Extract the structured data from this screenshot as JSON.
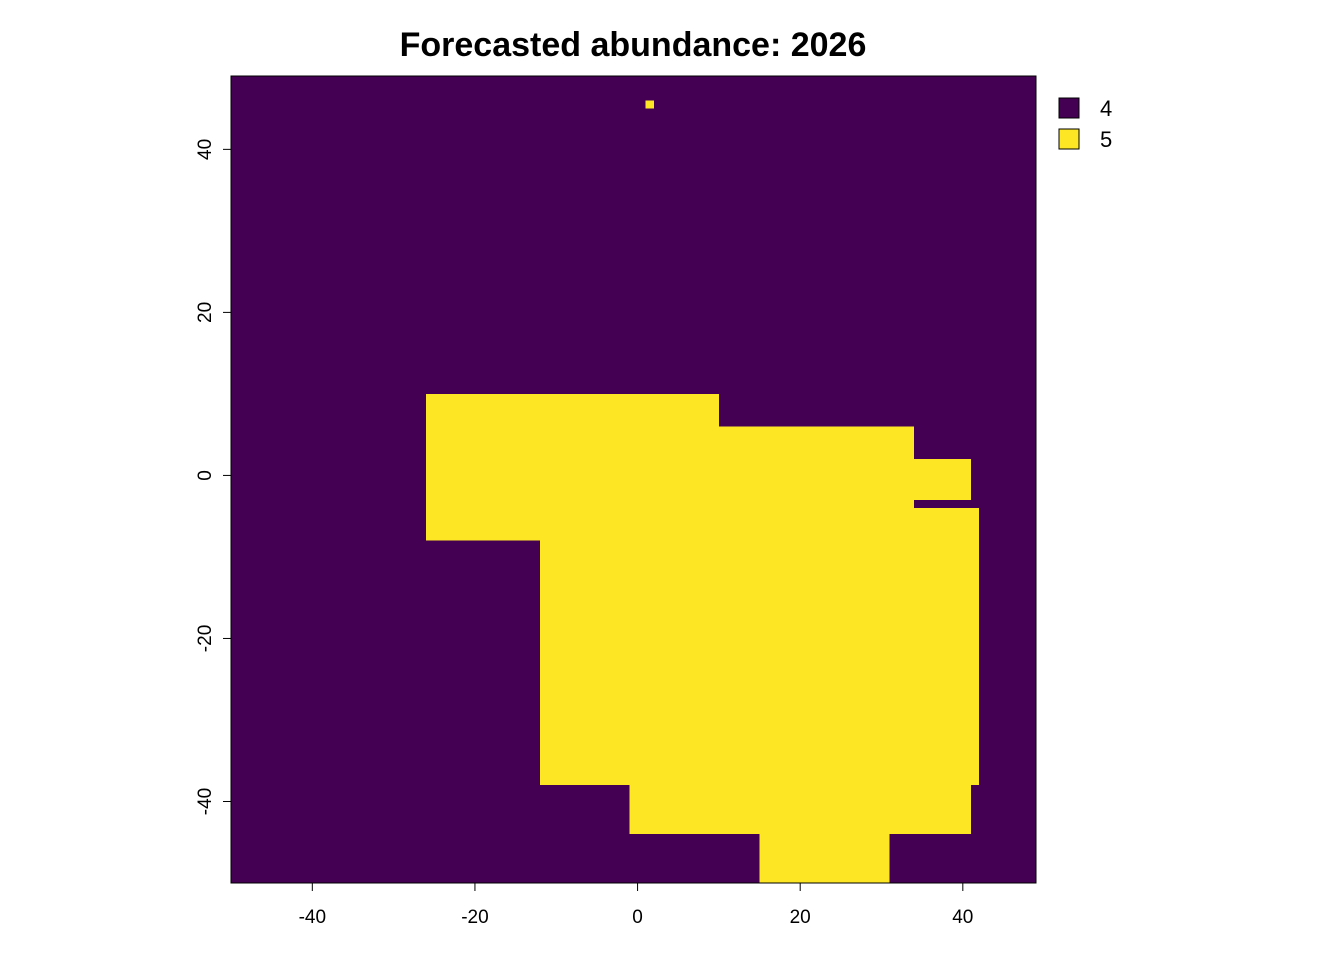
{
  "chart_data": {
    "type": "heatmap",
    "title": "Forecasted abundance: 2026",
    "xlabel": "",
    "ylabel": "",
    "xlim": [
      -50,
      49
    ],
    "ylim": [
      -50,
      49
    ],
    "x_ticks": [
      "-40",
      "-20",
      "0",
      "20",
      "40"
    ],
    "y_ticks": [
      "-40",
      "-20",
      "0",
      "20",
      "40"
    ],
    "grid": false,
    "legend_position": "top-right",
    "classes": [
      {
        "label": "4",
        "color": "#440154"
      },
      {
        "label": "5",
        "color": "#FDE725"
      }
    ],
    "background_class": "4",
    "value_5_regions": [
      {
        "x": [
          -26,
          10
        ],
        "y": [
          -8,
          10
        ]
      },
      {
        "x": [
          -12,
          42
        ],
        "y": [
          -38,
          -4
        ]
      },
      {
        "x": [
          -1,
          41
        ],
        "y": [
          -44,
          -30
        ]
      },
      {
        "x": [
          15,
          31
        ],
        "y": [
          -50,
          -44
        ]
      },
      {
        "x": [
          10,
          34
        ],
        "y": [
          -4,
          6
        ]
      },
      {
        "x": [
          33,
          41
        ],
        "y": [
          -3,
          2
        ]
      },
      {
        "x": [
          -11,
          -5
        ],
        "y": [
          -33,
          -27
        ]
      },
      {
        "x": [
          1,
          2
        ],
        "y": [
          45,
          46
        ]
      }
    ]
  }
}
